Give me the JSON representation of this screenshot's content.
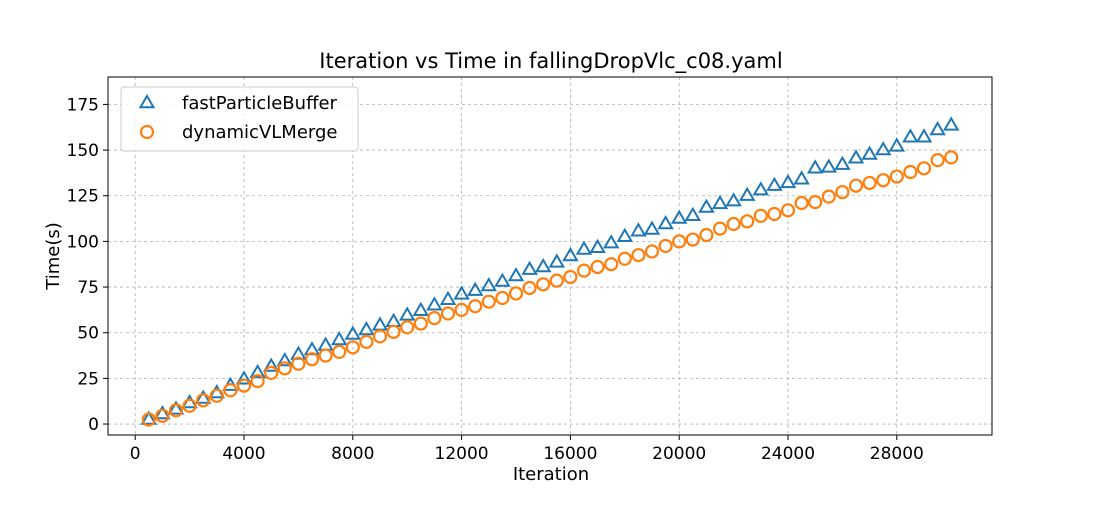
{
  "chart_data": {
    "type": "scatter",
    "title": "Iteration vs Time in fallingDropVlc_c08.yaml",
    "xlabel": "Iteration",
    "ylabel": "Time(s)",
    "xlim": [
      -1000,
      31500
    ],
    "ylim": [
      -6,
      190
    ],
    "xticks": [
      0,
      4000,
      8000,
      12000,
      16000,
      20000,
      24000,
      28000
    ],
    "yticks": [
      0,
      25,
      50,
      75,
      100,
      125,
      150,
      175
    ],
    "grid": true,
    "legend_position": "top-left",
    "x": [
      500,
      1000,
      1500,
      2000,
      2500,
      3000,
      3500,
      4000,
      4500,
      5000,
      5500,
      6000,
      6500,
      7000,
      7500,
      8000,
      8500,
      9000,
      9500,
      10000,
      10500,
      11000,
      11500,
      12000,
      12500,
      13000,
      13500,
      14000,
      14500,
      15000,
      15500,
      16000,
      16500,
      17000,
      17500,
      18000,
      18500,
      19000,
      19500,
      20000,
      20500,
      21000,
      21500,
      22000,
      22500,
      23000,
      23500,
      24000,
      24500,
      25000,
      25500,
      26000,
      26500,
      27000,
      27500,
      28000,
      28500,
      29000,
      29500,
      30000
    ],
    "series": [
      {
        "name": "fastParticleBuffer",
        "marker": "triangle",
        "color": "#1f77b4",
        "values": [
          2.5,
          5.5,
          8,
          11.5,
          14,
          17,
          21,
          24.5,
          28,
          31.5,
          34.5,
          38,
          40.5,
          43,
          46,
          49,
          51.5,
          54,
          56,
          59.5,
          62,
          65,
          68,
          71,
          73,
          75.5,
          78,
          81,
          84.5,
          86,
          88.5,
          92,
          95.5,
          96.5,
          99,
          102.5,
          105.5,
          106.5,
          109.5,
          112.5,
          114,
          118.5,
          120.5,
          122,
          125,
          128,
          130.5,
          132,
          134,
          140,
          140.5,
          142,
          145.5,
          147.5,
          150,
          152,
          157,
          157,
          161,
          163.5
        ]
      },
      {
        "name": "dynamicVLMerge",
        "marker": "circle",
        "color": "#ff7f0e",
        "values": [
          2.5,
          4.5,
          7.5,
          10,
          13,
          15.5,
          18.5,
          21,
          23.5,
          28,
          30.5,
          33,
          35.5,
          37.5,
          39.5,
          42,
          45,
          48,
          50.5,
          53,
          55,
          58,
          60.5,
          62.5,
          64.5,
          67,
          69,
          71.5,
          74.5,
          76.5,
          78.5,
          80.5,
          84,
          86,
          87.5,
          90.5,
          92.5,
          94.5,
          97.5,
          100,
          101,
          103.5,
          107,
          109.5,
          111,
          114,
          115,
          117,
          121,
          121.5,
          124.5,
          127,
          130.5,
          132,
          133.5,
          135.5,
          138,
          140,
          144.5,
          146
        ]
      }
    ]
  }
}
